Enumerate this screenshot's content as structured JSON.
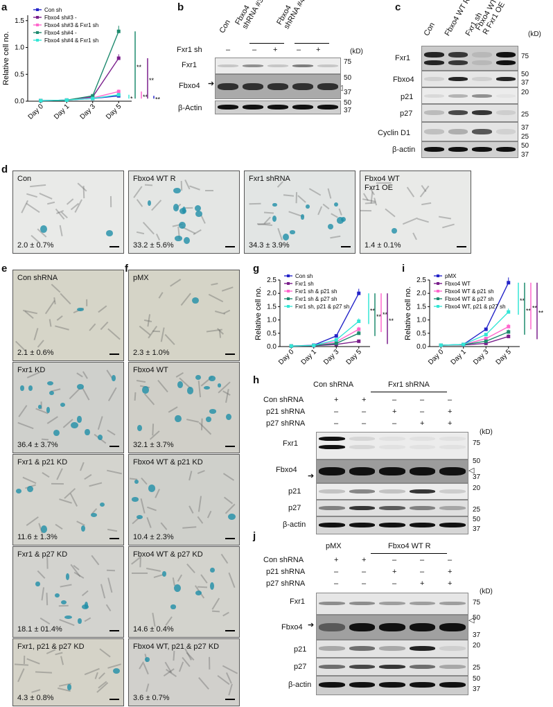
{
  "panels": {
    "a": "a",
    "b": "b",
    "c": "c",
    "d": "d",
    "e": "e",
    "f": "f",
    "g": "g",
    "h": "h",
    "i": "i",
    "j": "j"
  },
  "chart_data": [
    {
      "id": "a",
      "type": "line",
      "ylabel": "Relative cell no.",
      "categories": [
        "Day 0",
        "Day 1",
        "Day 3",
        "Day 5"
      ],
      "ylim": [
        0,
        1.6
      ],
      "yticks": [
        "0.0",
        "0.5",
        "1.0",
        "1.5"
      ],
      "series": [
        {
          "name": "Con sh",
          "color": "#2424c8",
          "values": [
            0.01,
            0.02,
            0.05,
            0.1
          ]
        },
        {
          "name": "Fbxo4 sh#3 -",
          "color": "#7a1f8c",
          "values": [
            0.01,
            0.02,
            0.08,
            0.8
          ]
        },
        {
          "name": "Fbxo4 sh#3 & Fxr1 sh",
          "color": "#ff66cc",
          "values": [
            0.01,
            0.02,
            0.06,
            0.18
          ]
        },
        {
          "name": "Fbxo4 sh#4 -",
          "color": "#1e8a6e",
          "values": [
            0.01,
            0.02,
            0.1,
            1.3
          ]
        },
        {
          "name": "Fbxo4 sh#4 & Fxr1 sh",
          "color": "#33e6d6",
          "values": [
            0.01,
            0.02,
            0.05,
            0.12
          ]
        }
      ],
      "sig": [
        "*",
        "**",
        "**",
        "**",
        "**"
      ]
    },
    {
      "id": "g",
      "type": "line",
      "ylabel": "Relative cell no.",
      "categories": [
        "Day 0",
        "Day 1",
        "Day 3",
        "Day 5"
      ],
      "ylim": [
        0,
        2.5
      ],
      "yticks": [
        "0.0",
        "0.5",
        "1.0",
        "1.5",
        "2.0",
        "2.5"
      ],
      "series": [
        {
          "name": "Con sh",
          "color": "#2424c8",
          "values": [
            0.02,
            0.05,
            0.4,
            2.0
          ]
        },
        {
          "name": "Fxr1 sh",
          "color": "#7a1f8c",
          "values": [
            0.02,
            0.03,
            0.08,
            0.2
          ]
        },
        {
          "name": "Fxr1 sh & p21 sh",
          "color": "#ff66cc",
          "values": [
            0.02,
            0.04,
            0.18,
            0.65
          ]
        },
        {
          "name": "Fxr1 sh & p27 sh",
          "color": "#1e8a6e",
          "values": [
            0.02,
            0.04,
            0.12,
            0.5
          ]
        },
        {
          "name": "Fxr1 sh, p21 & p27 sh",
          "color": "#33e6d6",
          "values": [
            0.02,
            0.04,
            0.25,
            0.95
          ]
        }
      ],
      "sig": [
        "**",
        "**",
        "**",
        "**"
      ]
    },
    {
      "id": "i",
      "type": "line",
      "ylabel": "Relative cell no.",
      "categories": [
        "Day 0",
        "Day 1",
        "Day 3",
        "Day 5"
      ],
      "ylim": [
        0,
        2.5
      ],
      "yticks": [
        "0.0",
        "0.5",
        "1.0",
        "1.5",
        "2.0",
        "2.5"
      ],
      "series": [
        {
          "name": "pMX",
          "color": "#2424c8",
          "values": [
            0.05,
            0.08,
            0.65,
            2.4
          ]
        },
        {
          "name": "Fbxo4 WT",
          "color": "#7a1f8c",
          "values": [
            0.05,
            0.06,
            0.12,
            0.38
          ]
        },
        {
          "name": "Fbxo4 WT & p21 sh",
          "color": "#ff66cc",
          "values": [
            0.05,
            0.07,
            0.3,
            0.75
          ]
        },
        {
          "name": "Fbxo4 WT & p27 sh",
          "color": "#1e8a6e",
          "values": [
            0.05,
            0.07,
            0.2,
            0.55
          ]
        },
        {
          "name": "Fbxo4 WT, p21 & p27 sh",
          "color": "#33e6d6",
          "values": [
            0.05,
            0.08,
            0.45,
            1.3
          ]
        }
      ],
      "sig": [
        "**",
        "**",
        "**",
        "**"
      ]
    }
  ],
  "blot_b": {
    "cols": [
      "Con",
      "Fbxo4 shRNA #3",
      "Fbxo4 shRNA #4"
    ],
    "fxr1_sh_label": "Fxr1 sh",
    "fxr1_sh": [
      "–",
      "–",
      "+",
      "–",
      "+"
    ],
    "kd": "(kD)",
    "rows": [
      "Fxr1",
      "Fbxo4",
      "β-Actin"
    ],
    "markers": [
      "75",
      "50",
      "37",
      "50",
      "37"
    ]
  },
  "blot_c": {
    "cols": [
      "Con",
      "Fbxo4 WT R",
      "Fxr1 sh",
      "Fbxo4 WT R Fxr1 OE"
    ],
    "kd": "(kD)",
    "rows": [
      "Fxr1",
      "Fbxo4",
      "p21",
      "p27",
      "Cyclin D1",
      "β-actin"
    ],
    "markers": [
      "75",
      "50",
      "37",
      "20",
      "25",
      "37",
      "25",
      "50",
      "37"
    ]
  },
  "micro_d": [
    {
      "label": "Con",
      "pct": "2.0 ± 0.7%"
    },
    {
      "label": "Fbxo4 WT R",
      "pct": "33.2 ± 5.6%"
    },
    {
      "label": "Fxr1 shRNA",
      "pct": "34.3 ± 3.9%"
    },
    {
      "label": "Fbxo4 WT\nFxr1 OE",
      "pct": "1.4 ± 0.1%"
    }
  ],
  "micro_e": [
    {
      "label": "Con shRNA",
      "pct": "2.1 ± 0.6%"
    },
    {
      "label": "Fxr1 KD",
      "pct": "36.4 ± 3.7%"
    },
    {
      "label": "Fxr1 & p21 KD",
      "pct": "11.6 ± 1.3%"
    },
    {
      "label": "Fxr1 & p27 KD",
      "pct": "18.1 ± 01.4%"
    },
    {
      "label": "Fxr1, p21 & p27 KD",
      "pct": "4.3 ± 0.8%"
    }
  ],
  "micro_f": [
    {
      "label": "pMX",
      "pct": "2.3 ± 1.0%"
    },
    {
      "label": "Fbxo4 WT",
      "pct": "32.1 ± 3.7%"
    },
    {
      "label": "Fbxo4 WT & p21 KD",
      "pct": "10.4 ± 2.3%"
    },
    {
      "label": "Fbxo4 WT & p27 KD",
      "pct": "14.6 ± 0.4%"
    },
    {
      "label": "Fbxo4 WT, p21 & p27 KD",
      "pct": "3.6 ± 0.7%"
    }
  ],
  "blot_h": {
    "group1": "Con shRNA",
    "group2": "Fxr1 shRNA",
    "cond": [
      "Con shRNA",
      "p21 shRNA",
      "p27 shRNA"
    ],
    "signs": [
      [
        "+",
        "+",
        "–",
        "–",
        "–"
      ],
      [
        "–",
        "–",
        "+",
        "–",
        "+"
      ],
      [
        "–",
        "–",
        "–",
        "+",
        "+"
      ]
    ],
    "kd": "(kD)",
    "rows": [
      "Fxr1",
      "Fbxo4",
      "p21",
      "p27",
      "β-actin"
    ],
    "markers": [
      "75",
      "50",
      "37",
      "20",
      "25",
      "50",
      "37"
    ]
  },
  "blot_j": {
    "group1": "pMX",
    "group2": "Fbxo4 WT R",
    "cond": [
      "Con shRNA",
      "p21 shRNA",
      "p27 shRNA"
    ],
    "signs": [
      [
        "+",
        "+",
        "–",
        "–",
        "–"
      ],
      [
        "–",
        "–",
        "+",
        "–",
        "+"
      ],
      [
        "–",
        "–",
        "–",
        "+",
        "+"
      ]
    ],
    "kd": "(kD)",
    "rows": [
      "Fxr1",
      "Fbxo4",
      "p21",
      "p27",
      "β-actin"
    ],
    "markers": [
      "75",
      "50",
      "37",
      "20",
      "25",
      "50",
      "37"
    ]
  }
}
